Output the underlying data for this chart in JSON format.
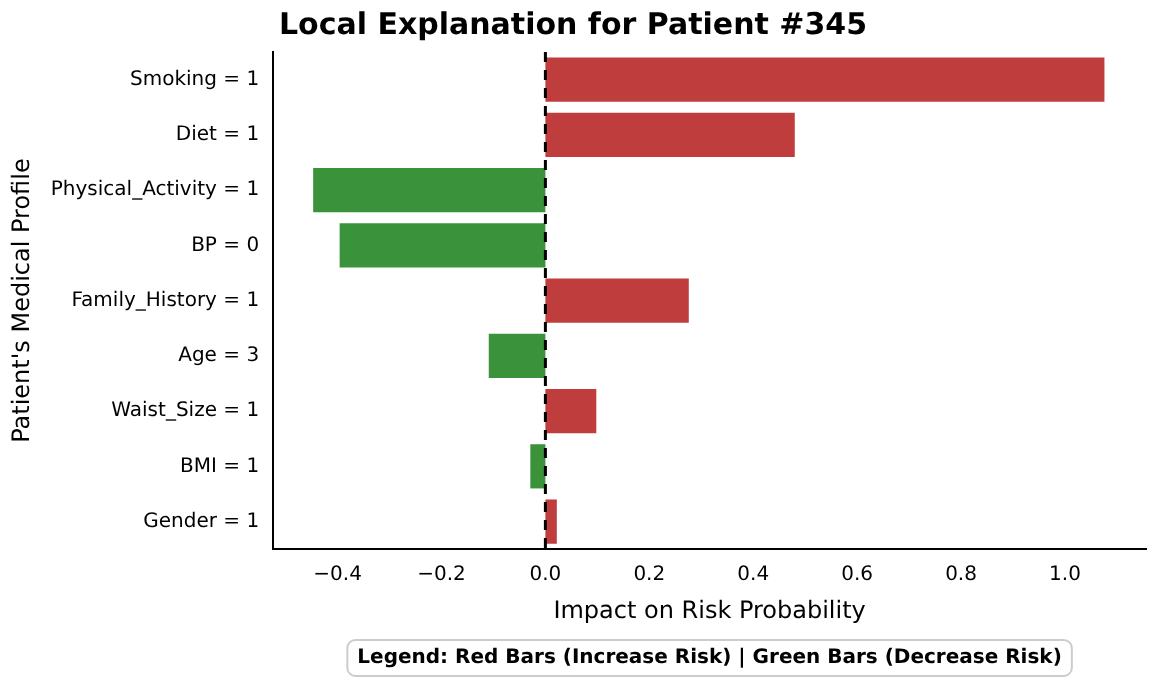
{
  "chart_data": {
    "type": "bar",
    "orientation": "horizontal",
    "title": "Local Explanation for Patient #345",
    "xlabel": "Impact on Risk Probability",
    "ylabel": "Patient's Medical Profile",
    "categories": [
      "Smoking = 1",
      "Diet = 1",
      "Physical_Activity = 1",
      "BP = 0",
      "Family_History = 1",
      "Age = 3",
      "Waist_Size = 1",
      "BMI = 1",
      "Gender = 1"
    ],
    "values": [
      1.076,
      0.48,
      -0.447,
      -0.396,
      0.276,
      -0.109,
      0.098,
      -0.029,
      0.022
    ],
    "colors": [
      "#c03d3e",
      "#c03d3e",
      "#3a923a",
      "#3a923a",
      "#c03d3e",
      "#3a923a",
      "#c03d3e",
      "#3a923a",
      "#c03d3e"
    ],
    "xlim": [
      -0.524,
      1.156
    ],
    "xticks": [
      {
        "value": -0.4,
        "label": "−0.4"
      },
      {
        "value": -0.2,
        "label": "−0.2"
      },
      {
        "value": 0,
        "label": "0.0"
      },
      {
        "value": 0.2,
        "label": "0.2"
      },
      {
        "value": 0.4,
        "label": "0.4"
      },
      {
        "value": 0.6,
        "label": "0.6"
      },
      {
        "value": 0.8,
        "label": "0.8"
      },
      {
        "value": 1.0,
        "label": "1.0"
      }
    ],
    "ref_lines": [
      {
        "axis": "x",
        "value": 0,
        "color": "#000000",
        "line_style": "dashed"
      }
    ],
    "annotations": [
      "Legend: Red Bars (Increase Risk) | Green Bars (Decrease Risk)"
    ],
    "grid": false,
    "legend": false
  }
}
